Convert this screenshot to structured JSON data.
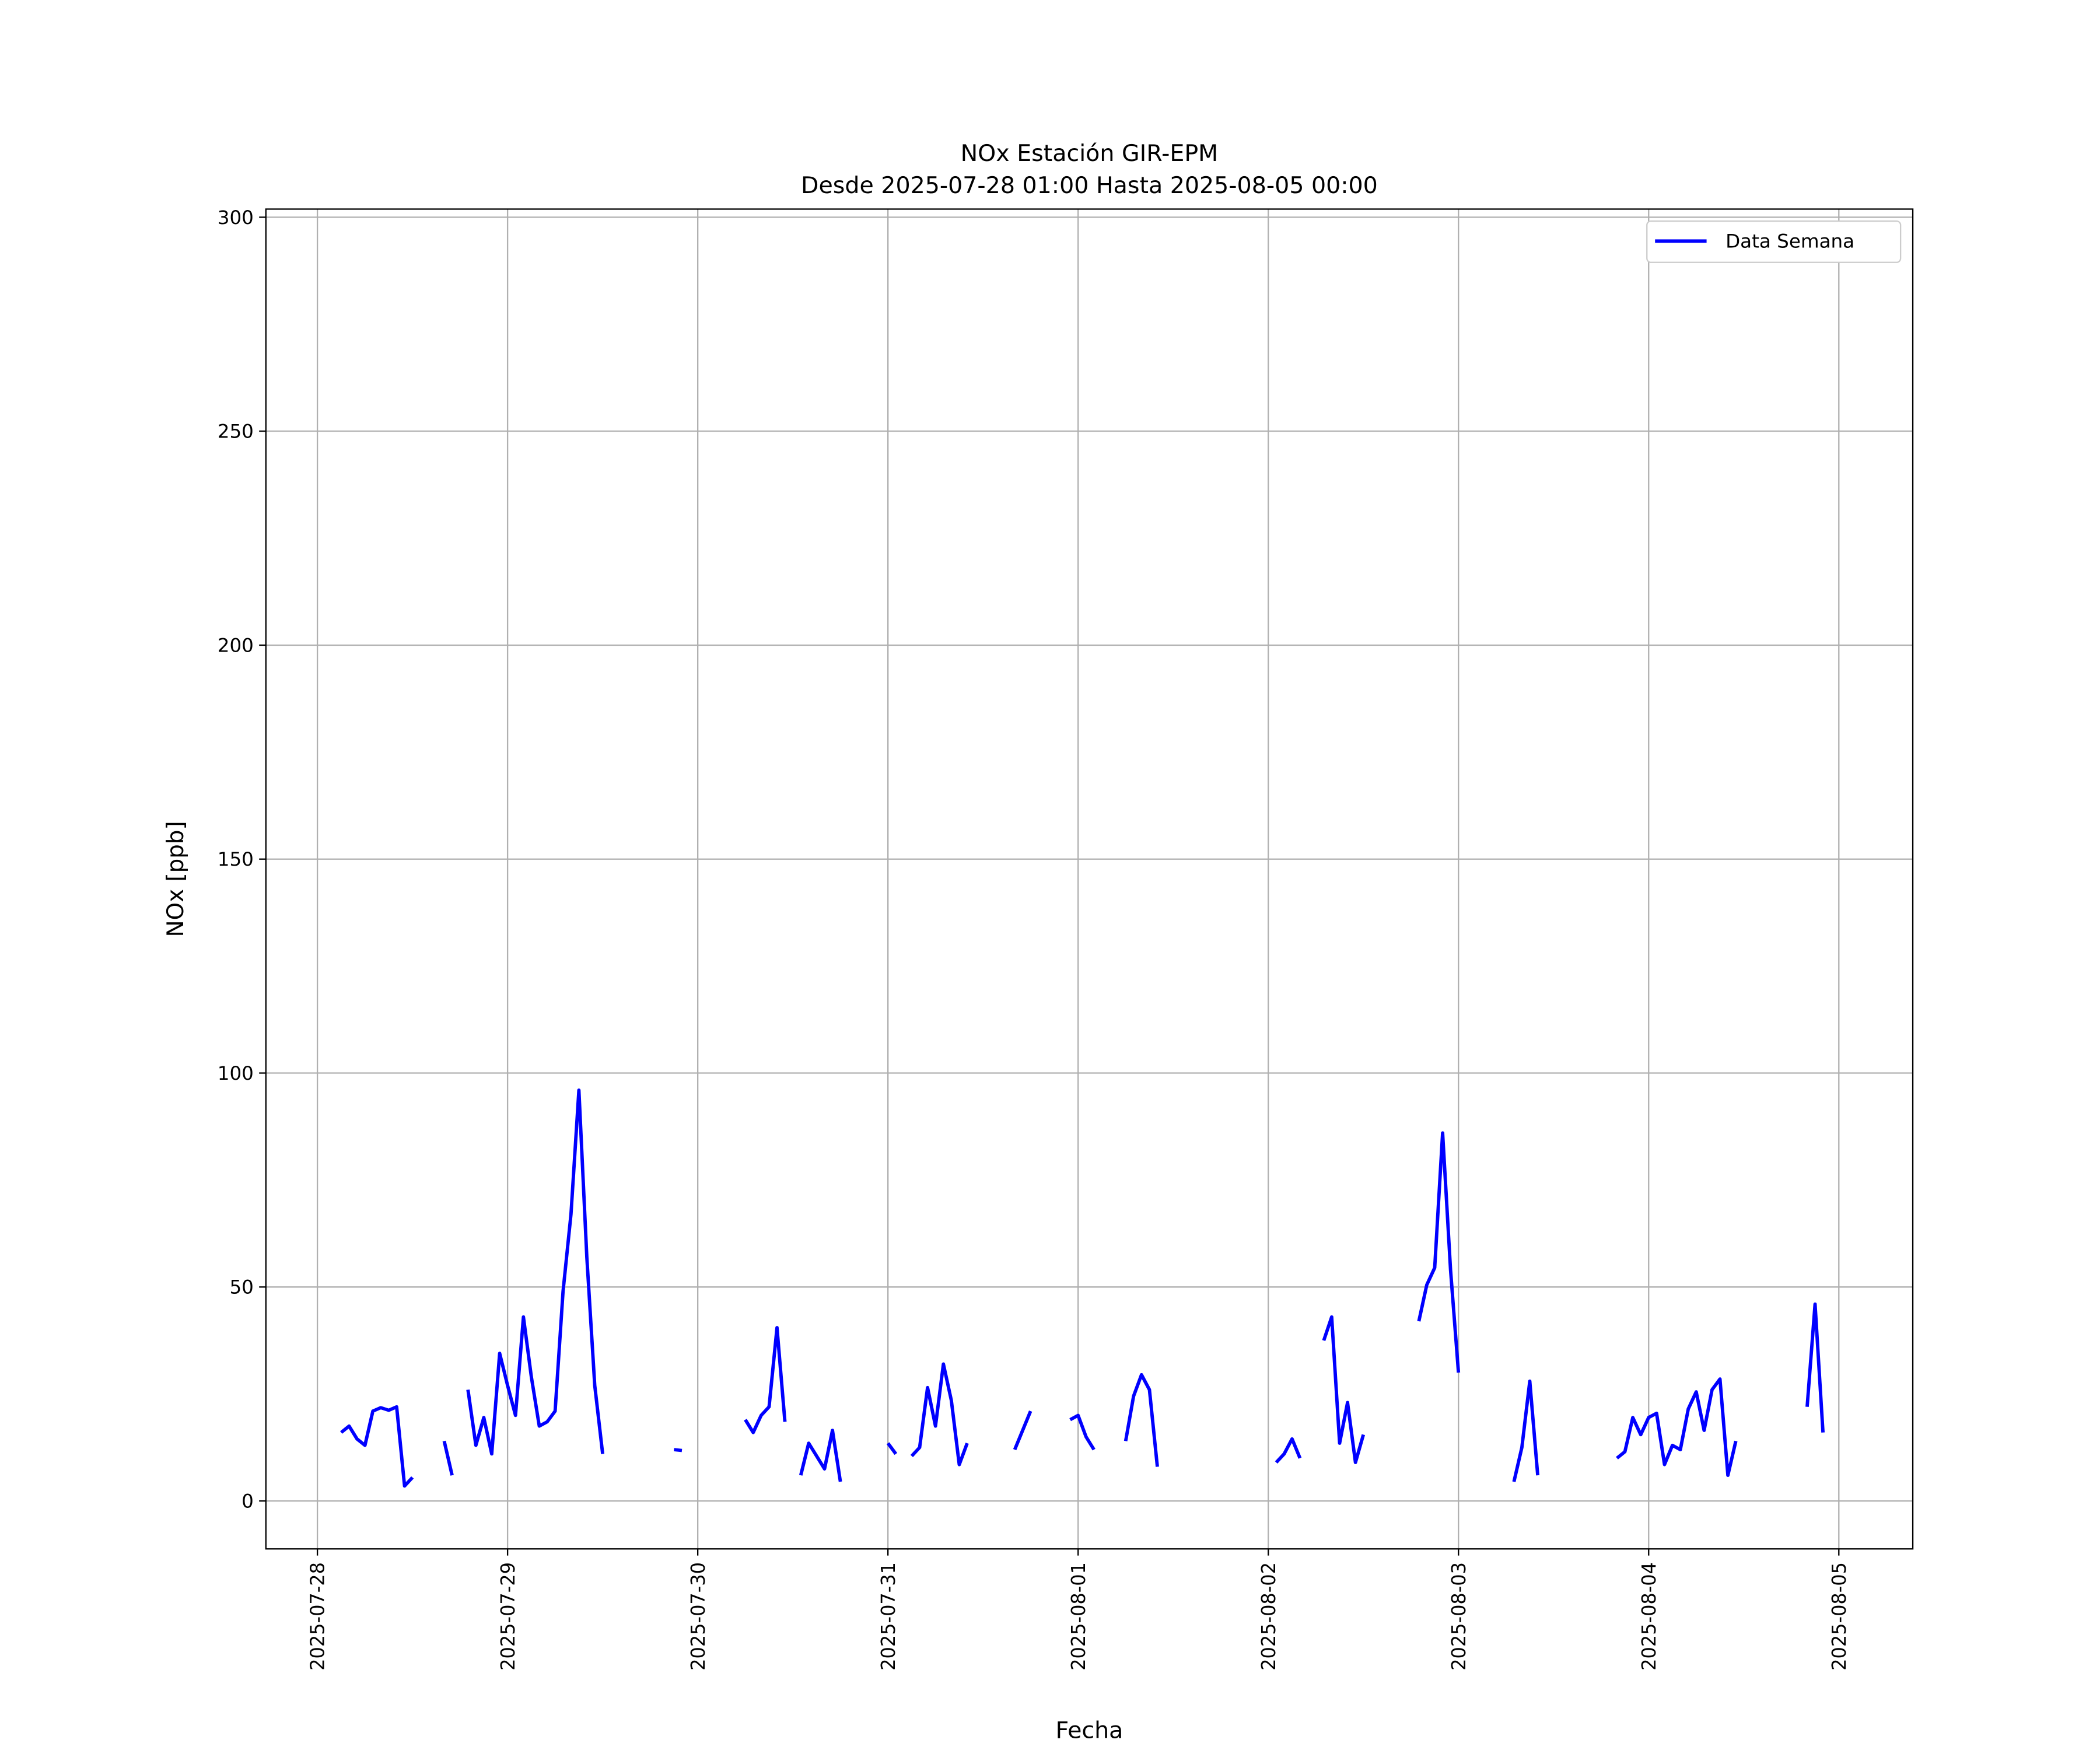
{
  "chart_data": {
    "type": "line",
    "title": "NOx Estación GIR-EPM",
    "subtitle": "Desde 2025-07-28 01:00 Hasta 2025-08-05 00:00",
    "x_label": "Fecha",
    "y_label": "NOx [ppb]",
    "x": [
      "2025-07-28 03:00",
      "2025-07-28 04:00",
      "2025-07-28 05:00",
      "2025-07-28 06:00",
      "2025-07-28 07:00",
      "2025-07-28 08:00",
      "2025-07-28 09:00",
      "2025-07-28 10:00",
      "2025-07-28 11:00",
      "2025-07-28 12:00",
      "2025-07-28 13:00",
      "2025-07-28 16:00",
      "2025-07-28 17:00",
      "2025-07-28 18:00",
      "2025-07-28 19:00",
      "2025-07-28 20:00",
      "2025-07-28 21:00",
      "2025-07-28 22:00",
      "2025-07-28 23:00",
      "2025-07-29 00:00",
      "2025-07-29 01:00",
      "2025-07-29 02:00",
      "2025-07-29 03:00",
      "2025-07-29 04:00",
      "2025-07-29 05:00",
      "2025-07-29 06:00",
      "2025-07-29 07:00",
      "2025-07-29 08:00",
      "2025-07-29 09:00",
      "2025-07-29 10:00",
      "2025-07-29 11:00",
      "2025-07-29 12:00",
      "2025-07-29 13:00",
      "2025-07-29 21:00",
      "2025-07-29 22:00",
      "2025-07-29 23:00",
      "2025-07-30 06:00",
      "2025-07-30 07:00",
      "2025-07-30 08:00",
      "2025-07-30 09:00",
      "2025-07-30 10:00",
      "2025-07-30 11:00",
      "2025-07-30 12:00",
      "2025-07-30 13:00",
      "2025-07-30 14:00",
      "2025-07-30 15:00",
      "2025-07-30 16:00",
      "2025-07-30 17:00",
      "2025-07-30 18:00",
      "2025-07-30 19:00",
      "2025-07-31 00:00",
      "2025-07-31 01:00",
      "2025-07-31 02:00",
      "2025-07-31 03:00",
      "2025-07-31 04:00",
      "2025-07-31 05:00",
      "2025-07-31 06:00",
      "2025-07-31 07:00",
      "2025-07-31 08:00",
      "2025-07-31 09:00",
      "2025-07-31 10:00",
      "2025-07-31 11:00",
      "2025-07-31 16:00",
      "2025-07-31 17:00",
      "2025-07-31 18:00",
      "2025-07-31 19:00",
      "2025-07-31 23:00",
      "2025-08-01 00:00",
      "2025-08-01 01:00",
      "2025-08-01 02:00",
      "2025-08-01 03:00",
      "2025-08-01 06:00",
      "2025-08-01 07:00",
      "2025-08-01 08:00",
      "2025-08-01 09:00",
      "2025-08-01 10:00",
      "2025-08-01 11:00",
      "2025-08-02 01:00",
      "2025-08-02 02:00",
      "2025-08-02 03:00",
      "2025-08-02 04:00",
      "2025-08-02 05:00",
      "2025-08-02 07:00",
      "2025-08-02 08:00",
      "2025-08-02 09:00",
      "2025-08-02 10:00",
      "2025-08-02 11:00",
      "2025-08-02 12:00",
      "2025-08-02 13:00",
      "2025-08-02 19:00",
      "2025-08-02 20:00",
      "2025-08-02 21:00",
      "2025-08-02 22:00",
      "2025-08-02 23:00",
      "2025-08-03 00:00",
      "2025-08-03 01:00",
      "2025-08-03 07:00",
      "2025-08-03 08:00",
      "2025-08-03 09:00",
      "2025-08-03 10:00",
      "2025-08-03 11:00",
      "2025-08-03 20:00",
      "2025-08-03 21:00",
      "2025-08-03 22:00",
      "2025-08-03 23:00",
      "2025-08-04 00:00",
      "2025-08-04 01:00",
      "2025-08-04 02:00",
      "2025-08-04 03:00",
      "2025-08-04 04:00",
      "2025-08-04 05:00",
      "2025-08-04 06:00",
      "2025-08-04 07:00",
      "2025-08-04 08:00",
      "2025-08-04 09:00",
      "2025-08-04 10:00",
      "2025-08-04 11:00",
      "2025-08-04 12:00",
      "2025-08-04 20:00",
      "2025-08-04 21:00",
      "2025-08-04 22:00"
    ],
    "series": [
      {
        "name": "Data Semana",
        "color": "#0000ff",
        "values": [
          16,
          17.5,
          14.5,
          13,
          21,
          21.8,
          21.2,
          22,
          3.5,
          5.5,
          null,
          14,
          6,
          null,
          26,
          13,
          19.5,
          11,
          34.5,
          27,
          20,
          43,
          29,
          17.5,
          18.5,
          21,
          49,
          67,
          96,
          57,
          27,
          11,
          null,
          12,
          11.8,
          null,
          19,
          16,
          20,
          22,
          40.5,
          18.5,
          null,
          6,
          13.5,
          10.5,
          7.5,
          16.5,
          4.5,
          null,
          13.5,
          11,
          null,
          10.5,
          12.5,
          26.5,
          17.5,
          32,
          23.5,
          8.5,
          13.5,
          null,
          12,
          16.5,
          21,
          null,
          19,
          20,
          15,
          12,
          null,
          14,
          24.5,
          29.5,
          26,
          8,
          null,
          9,
          11,
          14.5,
          10,
          null,
          37.5,
          43,
          13.5,
          23,
          9,
          15.5,
          null,
          42,
          50.5,
          54.5,
          86,
          54,
          30,
          null,
          4.5,
          12.5,
          28,
          6,
          null,
          10,
          11.5,
          19.5,
          15.5,
          19.5,
          20.5,
          8.5,
          13,
          12,
          21.5,
          25.5,
          16.5,
          26,
          28.5,
          6,
          14,
          null,
          22,
          46,
          16
        ]
      }
    ],
    "xlim": [
      "2025-07-27 17:30",
      "2025-08-05 09:20"
    ],
    "xticks": [
      "2025-07-28",
      "2025-07-29",
      "2025-07-30",
      "2025-07-31",
      "2025-08-01",
      "2025-08-02",
      "2025-08-03",
      "2025-08-04",
      "2025-08-05"
    ],
    "ylim": [
      -11.2,
      301.9
    ],
    "yticks": [
      0,
      50,
      100,
      150,
      200,
      250,
      300
    ],
    "grid": true,
    "legend": "upper right"
  }
}
